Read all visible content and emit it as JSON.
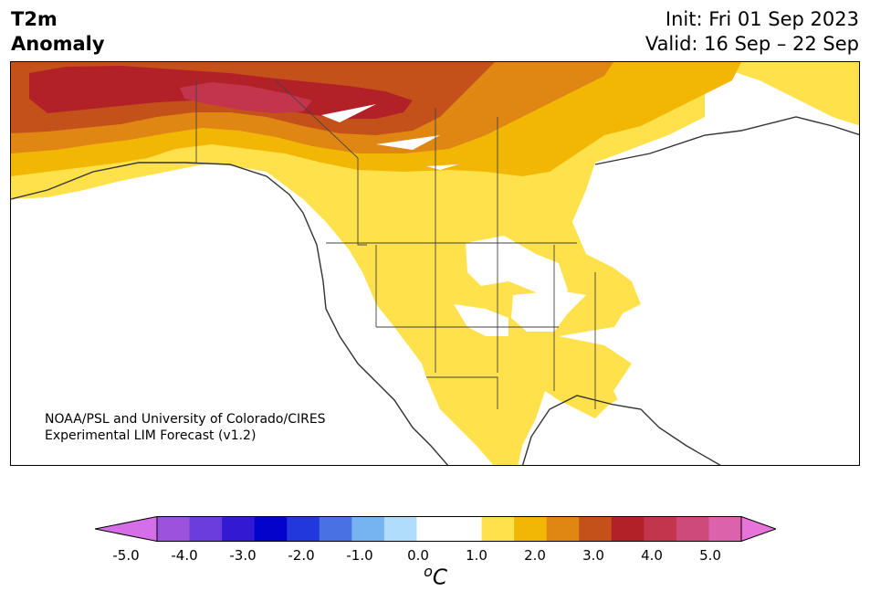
{
  "title": {
    "line1": "T2m",
    "line2": "Anomaly"
  },
  "forecast": {
    "init": "Init: Fri 01 Sep 2023",
    "valid": "Valid: 16 Sep – 22 Sep"
  },
  "credit": {
    "line1": "NOAA/PSL and University of Colorado/CIRES",
    "line2": "Experimental LIM Forecast (v1.2)"
  },
  "colorbar": {
    "unit_prefix": "o",
    "unit_letter": "C",
    "ticks": [
      "-5.0",
      "-4.0",
      "-3.0",
      "-2.0",
      "-1.0",
      "0.0",
      "1.0",
      "2.0",
      "3.0",
      "4.0",
      "5.0"
    ],
    "colors": [
      "#d46fe8",
      "#9c52dd",
      "#6a3ddc",
      "#3419d2",
      "#0303cc",
      "#2338dc",
      "#4a71e4",
      "#75b3f1",
      "#b0ddfc",
      "#ffffff",
      "#ffffff",
      "#ffe14b",
      "#f2b705",
      "#df8712",
      "#c5511a",
      "#b22127",
      "#c2354c",
      "#ce4a7a",
      "#db62ab",
      "#e874d9"
    ]
  },
  "map": {
    "legend_colors": {
      "light": "#ffe14b",
      "gold": "#f2b705",
      "orange": "#df8712",
      "brown": "#c5511a",
      "red": "#b22127",
      "crimson": "#c2354c"
    }
  }
}
